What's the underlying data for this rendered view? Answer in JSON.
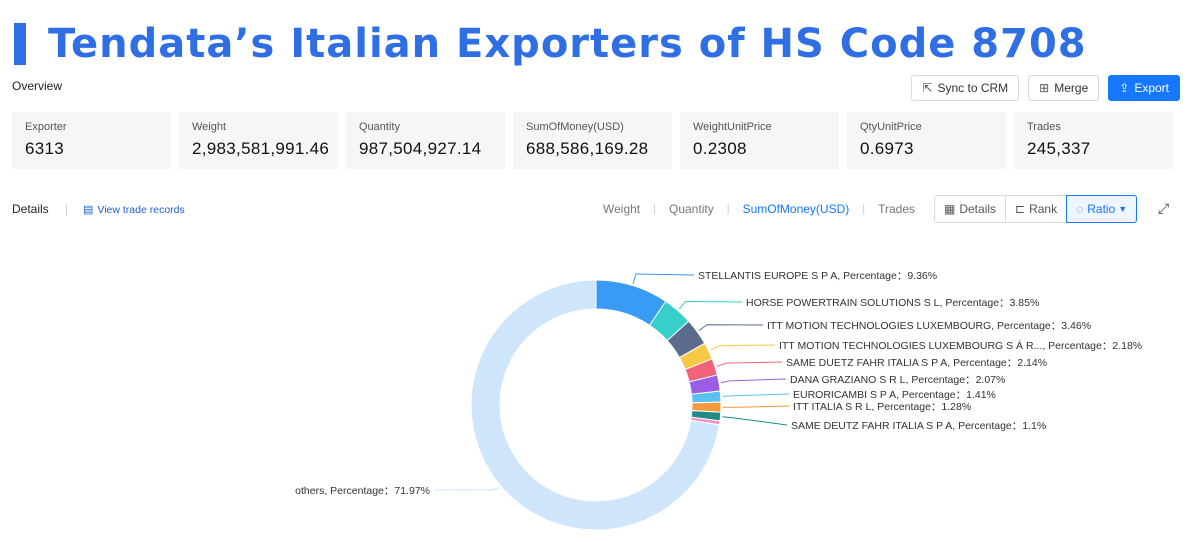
{
  "banner": {
    "title": "Tendata’s Italian Exporters of HS Code 8708"
  },
  "overview": {
    "label": "Overview"
  },
  "toolbar": {
    "sync_label": "Sync to CRM",
    "merge_label": "Merge",
    "export_label": "Export",
    "icons": {
      "sync": "share-icon",
      "merge": "merge-icon",
      "export": "export-icon"
    }
  },
  "stats": [
    {
      "label": "Exporter",
      "value": "6313"
    },
    {
      "label": "Weight",
      "value": "2,983,581,991.46"
    },
    {
      "label": "Quantity",
      "value": "987,504,927.14"
    },
    {
      "label": "SumOfMoney(USD)",
      "value": "688,586,169.28"
    },
    {
      "label": "WeightUnitPrice",
      "value": "0.2308"
    },
    {
      "label": "QtyUnitPrice",
      "value": "0.6973"
    },
    {
      "label": "Trades",
      "value": "245,337"
    }
  ],
  "details": {
    "label": "Details",
    "view_records": "View trade records"
  },
  "metric_tabs": {
    "weight": "Weight",
    "quantity": "Quantity",
    "sum": "SumOfMoney(USD)",
    "trades": "Trades",
    "active": "SumOfMoney(USD)"
  },
  "view_buttons": {
    "details": "Details",
    "rank": "Rank",
    "ratio": "Ratio",
    "active": "Ratio"
  },
  "colors": {
    "accent": "#1677ff",
    "banner": "#2f6fe3"
  },
  "chart_data": {
    "type": "pie",
    "donut": true,
    "label_separator": ",   Percentage：",
    "slices": [
      {
        "name": "STELLANTIS EUROPE S P A",
        "pct_label": "9.36%",
        "value": 9.36,
        "color": "#3a9bf5"
      },
      {
        "name": "HORSE POWERTRAIN SOLUTIONS S L",
        "pct_label": "3.85%",
        "value": 3.85,
        "color": "#36cfc9"
      },
      {
        "name": "ITT MOTION TECHNOLOGIES LUXEMBOURG",
        "pct_label": "3.46%",
        "value": 3.46,
        "color": "#5b6b8c"
      },
      {
        "name": "ITT MOTION TECHNOLOGIES LUXEMBOURG S Á R...",
        "pct_label": "2.18%",
        "value": 2.18,
        "color": "#f7c844"
      },
      {
        "name": "SAME DUETZ FAHR ITALIA S P A",
        "pct_label": "2.14%",
        "value": 2.14,
        "color": "#f2637b"
      },
      {
        "name": "DANA GRAZIANO S R L",
        "pct_label": "2.07%",
        "value": 2.07,
        "color": "#9b5de5"
      },
      {
        "name": "EURORICAMBI S P A",
        "pct_label": "1.41%",
        "value": 1.41,
        "color": "#59c2f3"
      },
      {
        "name": "ITT ITALIA S R L",
        "pct_label": "1.28%",
        "value": 1.28,
        "color": "#f59a3c"
      },
      {
        "name": "SAME DEUTZ FAHR ITALIA S P A",
        "pct_label": "1.1%",
        "value": 1.1,
        "color": "#1e8c84"
      },
      {
        "name": "",
        "pct_label": "",
        "value": 0.5,
        "color": "#f58fc2"
      },
      {
        "name": "others",
        "pct_label": "71.97%",
        "value": 71.97,
        "color": "#cfe5fb"
      }
    ]
  }
}
